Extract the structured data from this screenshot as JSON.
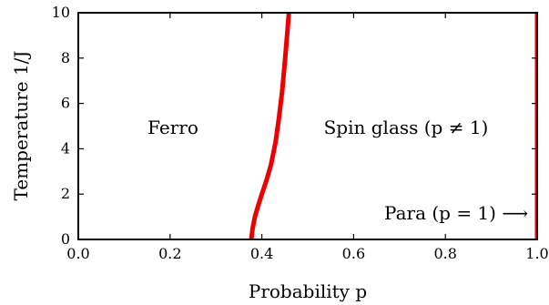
{
  "chart_data": {
    "type": "line",
    "xlabel": "Probability p",
    "ylabel": "Temperature 1/J",
    "xlim": [
      0.0,
      1.0
    ],
    "ylim": [
      0,
      10
    ],
    "x_ticks": [
      "0.0",
      "0.2",
      "0.4",
      "0.6",
      "0.8",
      "1.0"
    ],
    "y_ticks": [
      "0",
      "2",
      "4",
      "6",
      "8",
      "10"
    ],
    "grid": false,
    "legend": "none",
    "series": [
      {
        "color": "#ee0000",
        "x": [
          0.377,
          0.38,
          0.385,
          0.392,
          0.4,
          0.41,
          0.42,
          0.43,
          0.437,
          0.444,
          0.45,
          0.455,
          0.459
        ],
        "y": [
          0.0,
          0.5,
          1.0,
          1.5,
          2.0,
          2.6,
          3.3,
          4.3,
          5.3,
          6.5,
          7.8,
          9.0,
          10.0
        ]
      },
      {
        "color": "#ee0000",
        "x": [
          1.0,
          1.0
        ],
        "y": [
          0,
          10
        ]
      }
    ],
    "annotations": {
      "ferro": "Ferro",
      "spin_glass": "Spin glass (p ≠ 1)",
      "para": "Para (p = 1) ⟶"
    }
  }
}
